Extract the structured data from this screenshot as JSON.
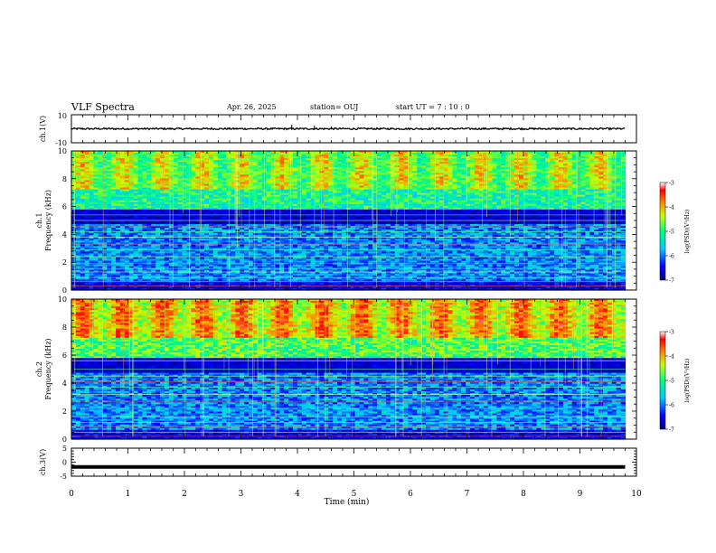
{
  "header": {
    "title": "VLF Spectra",
    "date": "Apr. 26, 2025",
    "station": "station= OUJ",
    "start_ut": "start  UT =   7 : 10 : 0"
  },
  "colors": {
    "background": "#ffffff",
    "colormap": [
      "#000080",
      "#0000ff",
      "#00c8ff",
      "#00ff80",
      "#c8ff00",
      "#ff8000",
      "#ff0000",
      "#ffffff"
    ]
  },
  "chart_data": [
    {
      "type": "line",
      "name": "ch.1 waveform",
      "ylabel": "ch.1(V)",
      "xlabel": "",
      "xlim": [
        0,
        10
      ],
      "ylim": [
        -10,
        10
      ],
      "yticks": [
        "10",
        "-10"
      ],
      "series": [
        {
          "x": [
            0,
            9.8
          ],
          "y": [
            0,
            0
          ],
          "note_amplitude_V": 0.6
        }
      ]
    },
    {
      "type": "heatmap",
      "name": "ch.1 spectrogram",
      "ylabel": "ch.1 Frequency (kHz)",
      "ylabel_channel": "ch.1",
      "ylabel_freq": "Frequency (kHz)",
      "xlim": [
        0,
        10
      ],
      "ylim": [
        0,
        10
      ],
      "yticks": [
        "0",
        "2",
        "4",
        "6",
        "8",
        "10"
      ],
      "data_end_min": 9.8,
      "colorbar": {
        "label": "log(PSD)(V²/Hz)",
        "range": [
          -7,
          -3
        ],
        "ticks": [
          "-3",
          "-4",
          "-5",
          "-6",
          "-7"
        ]
      }
    },
    {
      "type": "heatmap",
      "name": "ch.2 spectrogram",
      "ylabel": "ch.2 Frequency (kHz)",
      "ylabel_channel": "ch.2",
      "ylabel_freq": "Frequency (kHz)",
      "xlim": [
        0,
        10
      ],
      "ylim": [
        0,
        10
      ],
      "yticks": [
        "0",
        "2",
        "4",
        "6",
        "8",
        "10"
      ],
      "data_end_min": 9.8,
      "colorbar": {
        "label": "log(PSD)(V²/Hz)",
        "range": [
          -7,
          -3
        ],
        "ticks": [
          "-3",
          "-4",
          "-5",
          "-6",
          "-7"
        ]
      }
    },
    {
      "type": "line",
      "name": "ch.3 waveform",
      "ylabel": "ch.3(V)",
      "xlabel": "Time (min)",
      "xlim": [
        0,
        10
      ],
      "ylim": [
        -5,
        5
      ],
      "yticks": [
        "5",
        "0",
        "-5"
      ],
      "xticks": [
        "0",
        "1",
        "2",
        "3",
        "4",
        "5",
        "6",
        "7",
        "8",
        "9",
        "10"
      ],
      "series": [
        {
          "x": [
            0,
            9.8
          ],
          "y": [
            -1.7,
            -1.7
          ]
        }
      ]
    }
  ]
}
